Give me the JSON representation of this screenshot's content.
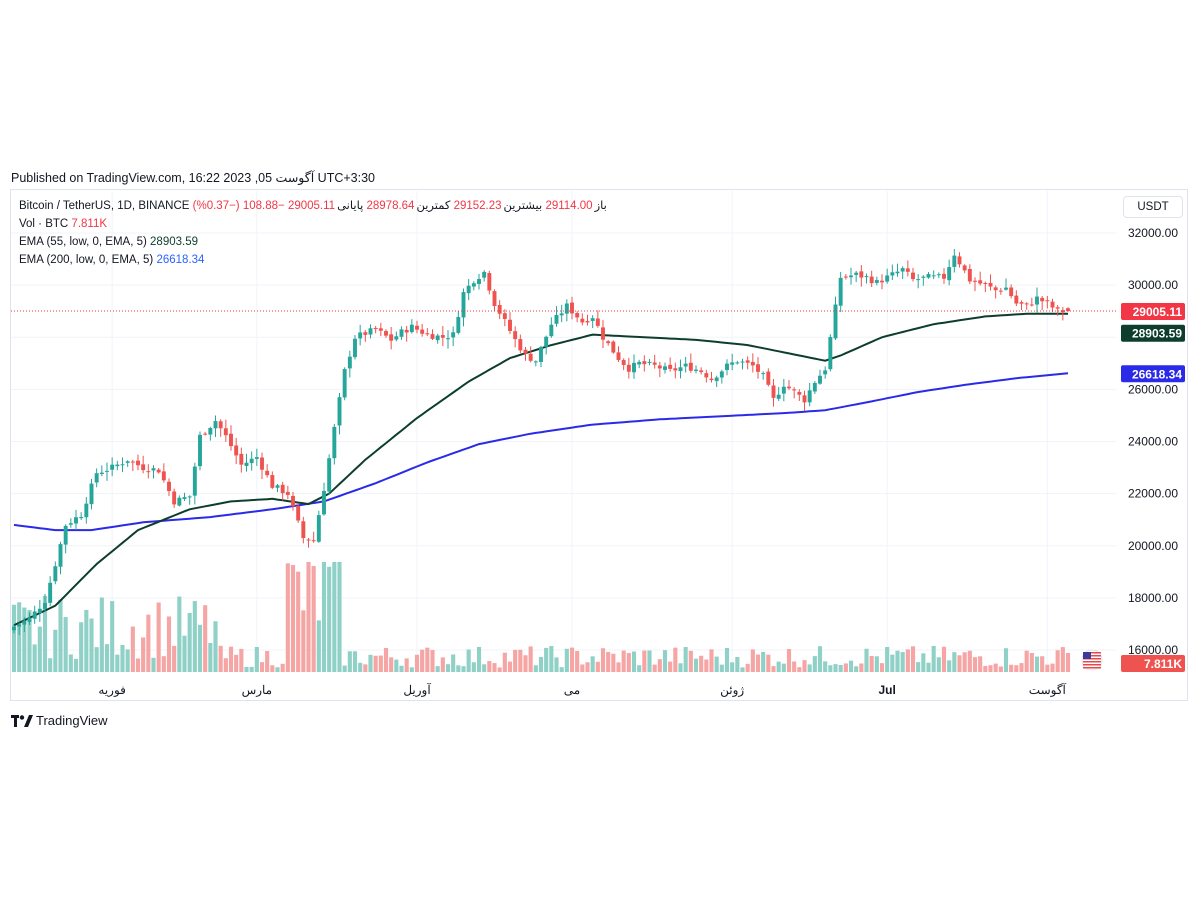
{
  "published": "Published on TradingView.com, 16:22 2023 ,05 آگوست UTC+3:30",
  "legend": {
    "symbol": "Bitcoin / TetherUS, 1D, BINANCE",
    "open_label": "باز",
    "open": "29114.00",
    "high_label": "بیشترین",
    "high": "29152.23",
    "low_label": "کمترین",
    "low": "28978.64",
    "close_label": "پایانی",
    "close": "29005.11",
    "change": "−108.88 (−0.37%)",
    "vol_label": "Vol · BTC",
    "vol": "7.811K",
    "ema55_label": "EMA (55, low, 0, EMA, 5)",
    "ema55": "28903.59",
    "ema200_label": "EMA (200, low, 0, EMA, 5)",
    "ema200": "26618.34"
  },
  "currency": "USDT",
  "brand": "TradingView",
  "colors": {
    "up": "#26a69a",
    "down": "#ef5350",
    "ema55": "#0d3d2d",
    "ema200": "#2a2ae8",
    "vol_up": "#8fd1c7",
    "vol_down": "#f5a5a3"
  },
  "axis_badges": {
    "price": "29005.11",
    "ema55": "28903.59",
    "ema200": "26618.34",
    "volume": "7.811K"
  },
  "chart_data": {
    "type": "candlestick",
    "y_axis_ticks": [
      16000,
      18000,
      20000,
      22000,
      24000,
      26000,
      28000,
      30000,
      32000
    ],
    "y_axis_labels": [
      "16000.00",
      "18000.00",
      "20000.00",
      "22000.00",
      "24000.00",
      "26000.00",
      "28000.00",
      "30000.00",
      "32000.00"
    ],
    "ylim": [
      14800,
      33000
    ],
    "x_axis_labels": [
      {
        "label": "فوریه",
        "index": 19
      },
      {
        "label": "مارس",
        "index": 47
      },
      {
        "label": "آوریل",
        "index": 78
      },
      {
        "label": "می",
        "index": 108
      },
      {
        "label": "ژوئن",
        "index": 139
      },
      {
        "label": "Jul",
        "index": 169
      },
      {
        "label": "آگوست",
        "index": 200
      }
    ],
    "candle_count": 205,
    "anchor_closes": [
      [
        0,
        16900
      ],
      [
        3,
        17200
      ],
      [
        6,
        17900
      ],
      [
        8,
        19300
      ],
      [
        10,
        20800
      ],
      [
        13,
        21200
      ],
      [
        16,
        22800
      ],
      [
        19,
        23000
      ],
      [
        22,
        23300
      ],
      [
        25,
        23000
      ],
      [
        28,
        22900
      ],
      [
        31,
        21700
      ],
      [
        34,
        21900
      ],
      [
        36,
        24200
      ],
      [
        39,
        24800
      ],
      [
        41,
        24200
      ],
      [
        44,
        23100
      ],
      [
        47,
        23400
      ],
      [
        50,
        22300
      ],
      [
        53,
        22000
      ],
      [
        56,
        20300
      ],
      [
        58,
        20200
      ],
      [
        60,
        22200
      ],
      [
        62,
        24500
      ],
      [
        64,
        26700
      ],
      [
        66,
        28000
      ],
      [
        70,
        28300
      ],
      [
        73,
        27900
      ],
      [
        75,
        28200
      ],
      [
        77,
        28400
      ],
      [
        80,
        28100
      ],
      [
        83,
        28000
      ],
      [
        85,
        28100
      ],
      [
        87,
        29700
      ],
      [
        89,
        30200
      ],
      [
        91,
        30500
      ],
      [
        93,
        29300
      ],
      [
        95,
        28600
      ],
      [
        97,
        27900
      ],
      [
        99,
        27300
      ],
      [
        101,
        27100
      ],
      [
        104,
        28500
      ],
      [
        107,
        29200
      ],
      [
        110,
        28600
      ],
      [
        112,
        28800
      ],
      [
        114,
        28000
      ],
      [
        117,
        27200
      ],
      [
        119,
        26800
      ],
      [
        121,
        27000
      ],
      [
        124,
        26900
      ],
      [
        127,
        26700
      ],
      [
        130,
        26900
      ],
      [
        133,
        26700
      ],
      [
        135,
        26400
      ],
      [
        138,
        26900
      ],
      [
        140,
        27100
      ],
      [
        143,
        26900
      ],
      [
        145,
        26500
      ],
      [
        147,
        25600
      ],
      [
        149,
        26200
      ],
      [
        151,
        25900
      ],
      [
        153,
        25600
      ],
      [
        155,
        26300
      ],
      [
        157,
        26800
      ],
      [
        160,
        30300
      ],
      [
        163,
        30400
      ],
      [
        165,
        30300
      ],
      [
        167,
        30100
      ],
      [
        170,
        30400
      ],
      [
        172,
        30600
      ],
      [
        174,
        30200
      ],
      [
        177,
        30300
      ],
      [
        180,
        30300
      ],
      [
        182,
        31200
      ],
      [
        185,
        30200
      ],
      [
        188,
        30000
      ],
      [
        190,
        29800
      ],
      [
        192,
        29900
      ],
      [
        194,
        29300
      ],
      [
        196,
        29200
      ],
      [
        198,
        29500
      ],
      [
        200,
        29300
      ],
      [
        202,
        29000
      ],
      [
        204,
        29005
      ]
    ],
    "ema55_values": [
      [
        0,
        16950
      ],
      [
        8,
        17700
      ],
      [
        16,
        19300
      ],
      [
        24,
        20600
      ],
      [
        34,
        21400
      ],
      [
        42,
        21700
      ],
      [
        50,
        21800
      ],
      [
        57,
        21600
      ],
      [
        61,
        22000
      ],
      [
        68,
        23300
      ],
      [
        78,
        24900
      ],
      [
        88,
        26300
      ],
      [
        96,
        27200
      ],
      [
        104,
        27700
      ],
      [
        112,
        28100
      ],
      [
        122,
        28000
      ],
      [
        132,
        27900
      ],
      [
        142,
        27700
      ],
      [
        152,
        27300
      ],
      [
        157,
        27100
      ],
      [
        160,
        27300
      ],
      [
        168,
        28000
      ],
      [
        178,
        28500
      ],
      [
        188,
        28800
      ],
      [
        196,
        28900
      ],
      [
        204,
        28904
      ]
    ],
    "ema200_values": [
      [
        0,
        20800
      ],
      [
        8,
        20600
      ],
      [
        15,
        20600
      ],
      [
        25,
        20900
      ],
      [
        38,
        21100
      ],
      [
        50,
        21400
      ],
      [
        60,
        21700
      ],
      [
        70,
        22400
      ],
      [
        80,
        23200
      ],
      [
        90,
        23900
      ],
      [
        100,
        24300
      ],
      [
        112,
        24650
      ],
      [
        125,
        24850
      ],
      [
        140,
        25000
      ],
      [
        150,
        25100
      ],
      [
        157,
        25200
      ],
      [
        165,
        25500
      ],
      [
        175,
        25900
      ],
      [
        185,
        26200
      ],
      [
        195,
        26450
      ],
      [
        204,
        26618
      ]
    ],
    "series": [
      {
        "name": "EMA (55, low, 0, EMA, 5)",
        "last": 28903.59
      },
      {
        "name": "EMA (200, low, 0, EMA, 5)",
        "last": 26618.34
      }
    ],
    "last_candle": {
      "open": 29114.0,
      "high": 29152.23,
      "low": 28978.64,
      "close": 29005.11
    }
  }
}
